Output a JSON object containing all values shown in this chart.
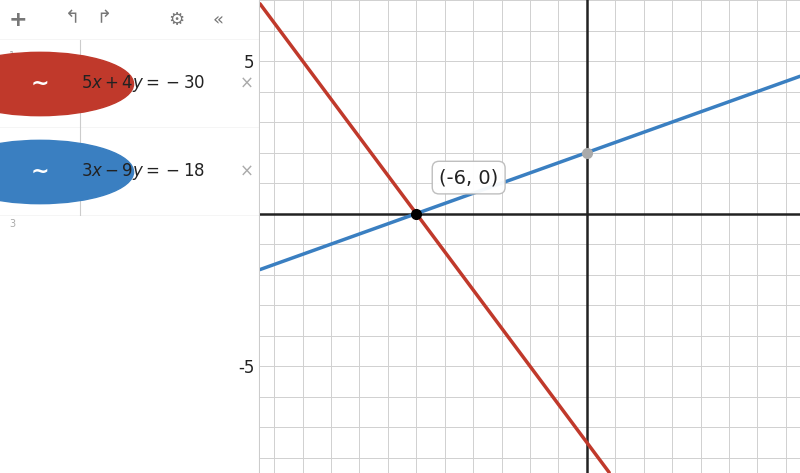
{
  "xlim": [
    -11.5,
    7.5
  ],
  "ylim": [
    -8.5,
    7
  ],
  "xticks_major": [
    -10,
    -5,
    0,
    5
  ],
  "yticks_major": [
    -5,
    5
  ],
  "grid_color": "#d0d0d0",
  "bg_color": "#ffffff",
  "plot_bg_color": "#ffffff",
  "line1_color": "#c0392b",
  "line2_color": "#3a7fc1",
  "intersection_x": -6,
  "intersection_y": 0,
  "intersection_label": "(-6, 0)",
  "axis_color": "#222222",
  "tick_fontsize": 12,
  "annotation_fontsize": 14,
  "line_width": 2.5,
  "panel_bg": "#f0f0f0",
  "panel_row1_bg": "#ffffff",
  "panel_row2_bg": "#c8dff5",
  "panel_icon_col_bg": "#f0f0f0",
  "panel_icon2_bg": "#3a7fc1",
  "toolbar_bg": "#f0f0f0",
  "toolbar_color": "#777777",
  "eq1_color": "#222222",
  "eq2_color": "#222222",
  "cross_color": "#aaaaaa",
  "row_num_color": "#aaaaaa",
  "panel_border_color": "#cccccc",
  "grey_dot_color": "#aaaaaa",
  "grey_dot_x": 0,
  "grey_dot_y": 2.0
}
